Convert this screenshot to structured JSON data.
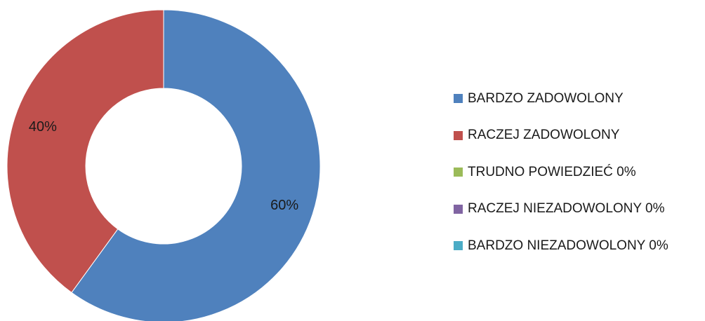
{
  "chart_data": {
    "type": "pie",
    "style": "donut",
    "legend_position": "right",
    "slices": [
      {
        "label": "BARDZO ZADOWOLONY",
        "value": 60,
        "data_label": "60%",
        "color": "#4F81BD"
      },
      {
        "label": "RACZEJ ZADOWOLONY",
        "value": 40,
        "data_label": "40%",
        "color": "#C0504D"
      },
      {
        "label": "TRUDNO POWIEDZIEĆ 0%",
        "value": 0,
        "data_label": "",
        "color": "#9BBB59"
      },
      {
        "label": "RACZEJ NIEZADOWOLONY 0%",
        "value": 0,
        "data_label": "",
        "color": "#8064A2"
      },
      {
        "label": "BARDZO NIEZADOWOLONY 0%",
        "value": 0,
        "data_label": "",
        "color": "#4BACC6"
      }
    ]
  }
}
